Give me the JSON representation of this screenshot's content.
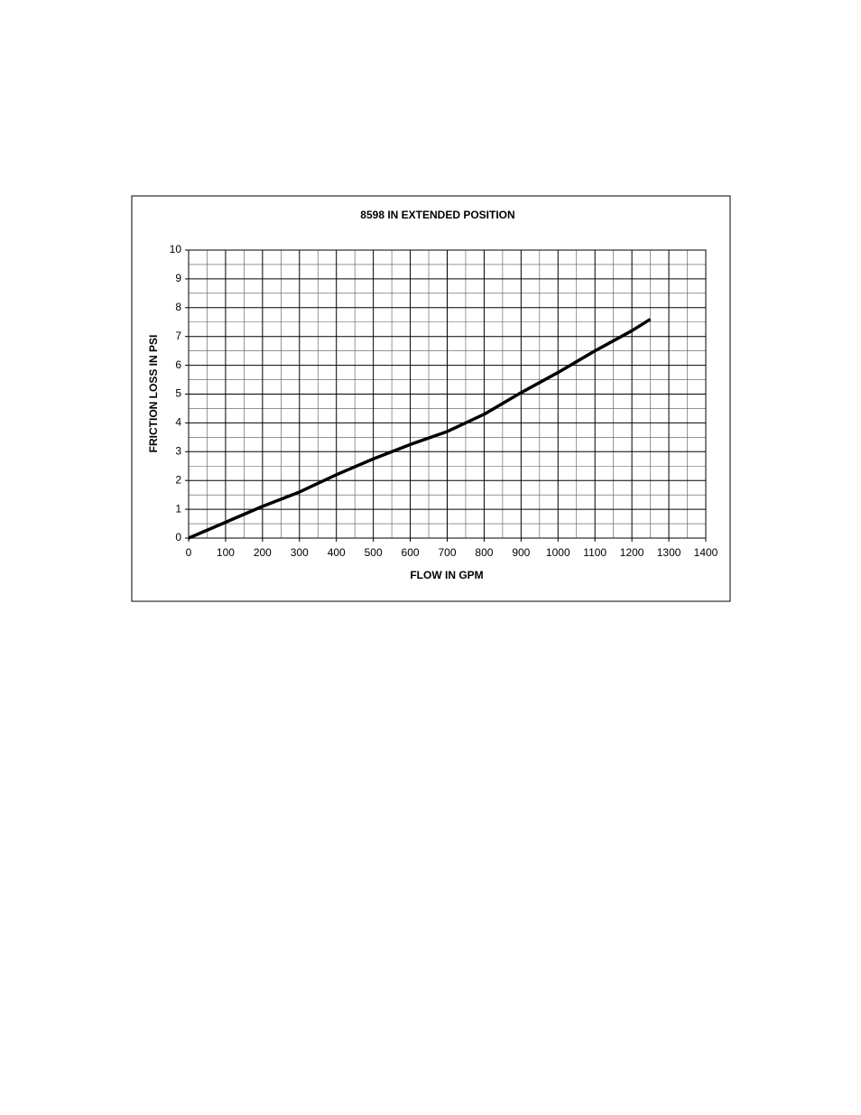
{
  "chart_data": {
    "type": "line",
    "title": "8598 IN EXTENDED POSITION",
    "x_label": "FLOW IN GPM",
    "y_label": "FRICTION LOSS IN PSI",
    "x": [
      0,
      100,
      200,
      300,
      400,
      500,
      600,
      700,
      800,
      900,
      1000,
      1100,
      1200,
      1250
    ],
    "series": [
      {
        "name": "8598 IN EXTENDED POSITION",
        "color": "#000000",
        "values": [
          0,
          0.55,
          1.1,
          1.6,
          2.2,
          2.75,
          3.25,
          3.7,
          4.3,
          5.05,
          5.75,
          6.5,
          7.2,
          7.6
        ]
      }
    ],
    "xlim": [
      0,
      1400
    ],
    "xticks": [
      0,
      100,
      200,
      300,
      400,
      500,
      600,
      700,
      800,
      900,
      1000,
      1100,
      1200,
      1300,
      1400
    ],
    "ylim": [
      0,
      10
    ],
    "yticks": [
      0,
      1,
      2,
      3,
      4,
      5,
      6,
      7,
      8,
      9,
      10
    ],
    "grid": true,
    "minor_grid": true
  }
}
